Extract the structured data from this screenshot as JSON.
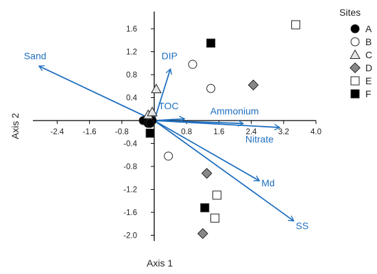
{
  "chart_data": {
    "type": "scatter",
    "title": "",
    "xlabel": "Axis 1",
    "ylabel": "Axis 2",
    "xlim": [
      -3.0,
      4.0
    ],
    "ylim": [
      -2.1,
      1.9
    ],
    "xticks": [
      -2.4,
      -1.6,
      -0.8,
      0.8,
      1.6,
      2.4,
      3.2,
      4.0
    ],
    "xtick_labels": [
      "-2.4",
      "-1.6",
      "-0.8",
      "0.8",
      "1.6",
      "2.4",
      "3.2",
      "4.0"
    ],
    "yticks": [
      -2.0,
      -1.6,
      -1.2,
      -0.8,
      -0.4,
      0.4,
      0.8,
      1.2,
      1.6
    ],
    "ytick_labels": [
      "-2.0",
      "-1.6",
      "-1.2",
      "-0.8",
      "-0.4",
      "0.4",
      "0.8",
      "1.2",
      "1.6"
    ],
    "grid": false,
    "legend": {
      "title": "Sites",
      "placement": "right",
      "entries": [
        {
          "label": "A",
          "marker": "circle",
          "fill": "#000000"
        },
        {
          "label": "B",
          "marker": "circle",
          "fill": "#ffffff"
        },
        {
          "label": "C",
          "marker": "triangle",
          "fill": "#e6e6e6"
        },
        {
          "label": "D",
          "marker": "diamond",
          "fill": "#888888"
        },
        {
          "label": "E",
          "marker": "square",
          "fill": "#ffffff"
        },
        {
          "label": "F",
          "marker": "square",
          "fill": "#000000"
        }
      ]
    },
    "vector_color": "#1f6fbf",
    "vectors": [
      {
        "label": "Sand",
        "x": -2.85,
        "y": 0.95
      },
      {
        "label": "DIP",
        "x": 0.4,
        "y": 0.9
      },
      {
        "label": "TOC",
        "x": 0.75,
        "y": 0.03
      },
      {
        "label": "Ammonium",
        "x": 2.2,
        "y": -0.05
      },
      {
        "label": "Nitrate",
        "x": 3.1,
        "y": -0.12
      },
      {
        "label": "Md",
        "x": 2.6,
        "y": -1.05
      },
      {
        "label": "SS",
        "x": 3.45,
        "y": -1.75
      }
    ],
    "series": [
      {
        "name": "A",
        "points": [
          [
            -0.27,
            0.0
          ],
          [
            -0.15,
            -0.05
          ],
          [
            -0.05,
            0.0
          ],
          [
            -0.1,
            -0.05
          ]
        ]
      },
      {
        "name": "B",
        "points": [
          [
            0.95,
            0.98
          ],
          [
            1.4,
            0.56
          ],
          [
            0.35,
            -0.62
          ]
        ]
      },
      {
        "name": "C",
        "points": [
          [
            0.05,
            0.55
          ],
          [
            -0.15,
            0.1
          ],
          [
            -0.05,
            0.15
          ]
        ]
      },
      {
        "name": "D",
        "points": [
          [
            2.45,
            0.62
          ],
          [
            1.3,
            -0.92
          ],
          [
            1.2,
            -1.97
          ]
        ]
      },
      {
        "name": "E",
        "points": [
          [
            3.5,
            1.67
          ],
          [
            1.55,
            -1.3
          ],
          [
            1.5,
            -1.7
          ]
        ]
      },
      {
        "name": "F",
        "points": [
          [
            1.4,
            1.35
          ],
          [
            1.25,
            -1.52
          ],
          [
            -0.1,
            -0.22
          ]
        ]
      }
    ]
  }
}
